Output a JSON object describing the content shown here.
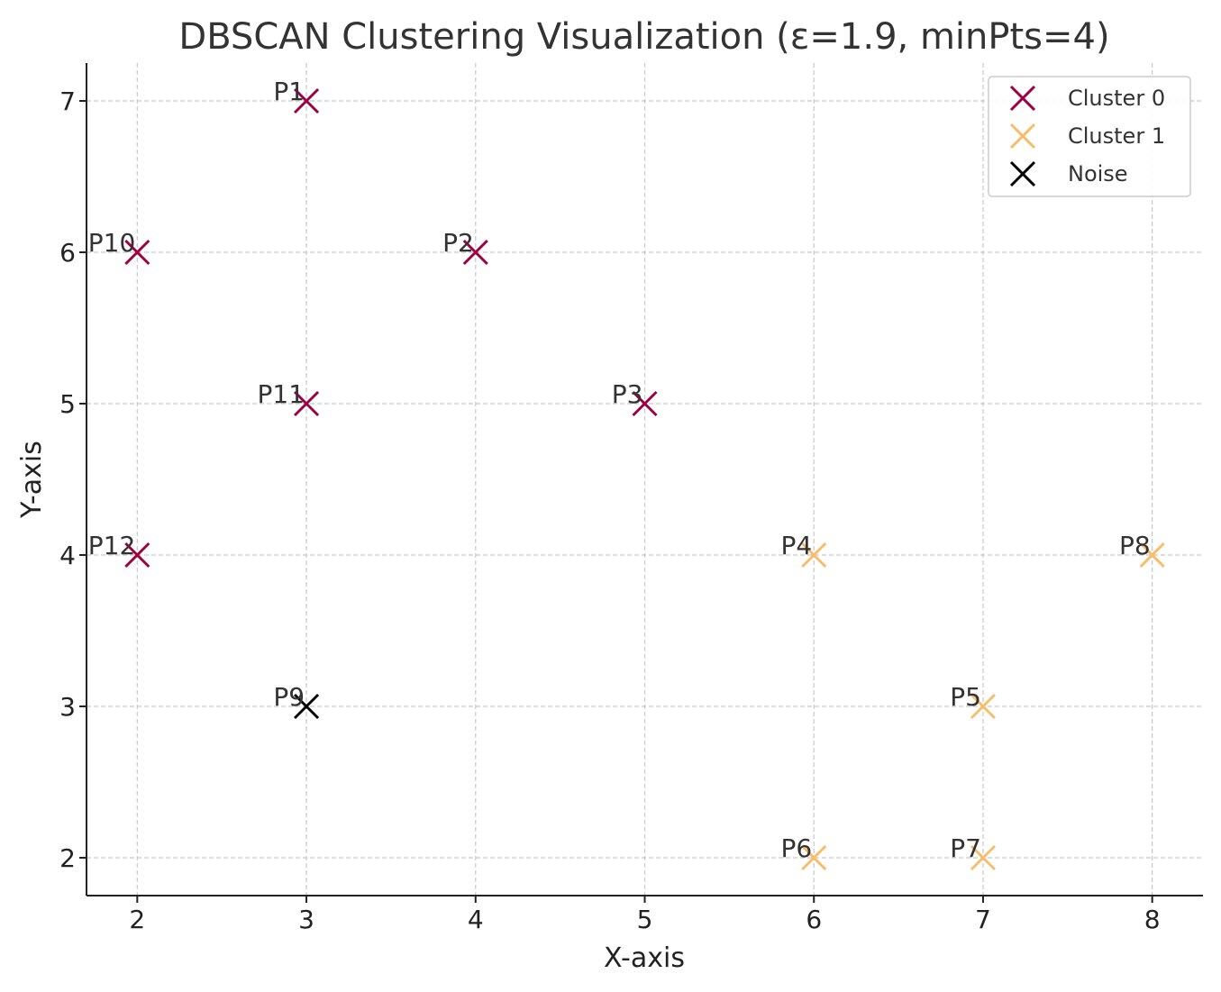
{
  "chart_data": {
    "type": "scatter",
    "title": "DBSCAN Clustering Visualization (ε=1.9, minPts=4)",
    "xlabel": "X-axis",
    "ylabel": "Y-axis",
    "xlim": [
      1.7,
      8.3
    ],
    "ylim": [
      1.75,
      7.25
    ],
    "xticks": [
      2,
      3,
      4,
      5,
      6,
      7,
      8
    ],
    "yticks": [
      2,
      3,
      4,
      5,
      6,
      7
    ],
    "grid": true,
    "legend_position": "top-right",
    "series": [
      {
        "name": "Cluster 0",
        "color": "#9e0142",
        "points": [
          {
            "label": "P1",
            "x": 3,
            "y": 7
          },
          {
            "label": "P2",
            "x": 4,
            "y": 6
          },
          {
            "label": "P3",
            "x": 5,
            "y": 5
          },
          {
            "label": "P10",
            "x": 2,
            "y": 6
          },
          {
            "label": "P11",
            "x": 3,
            "y": 5
          },
          {
            "label": "P12",
            "x": 2,
            "y": 4
          }
        ]
      },
      {
        "name": "Cluster 1",
        "color": "#f9bc6a",
        "points": [
          {
            "label": "P4",
            "x": 6,
            "y": 4
          },
          {
            "label": "P5",
            "x": 7,
            "y": 3
          },
          {
            "label": "P6",
            "x": 6,
            "y": 2
          },
          {
            "label": "P7",
            "x": 7,
            "y": 2
          },
          {
            "label": "P8",
            "x": 8,
            "y": 4
          }
        ]
      },
      {
        "name": "Noise",
        "color": "#000000",
        "points": [
          {
            "label": "P9",
            "x": 3,
            "y": 3
          }
        ]
      }
    ]
  }
}
